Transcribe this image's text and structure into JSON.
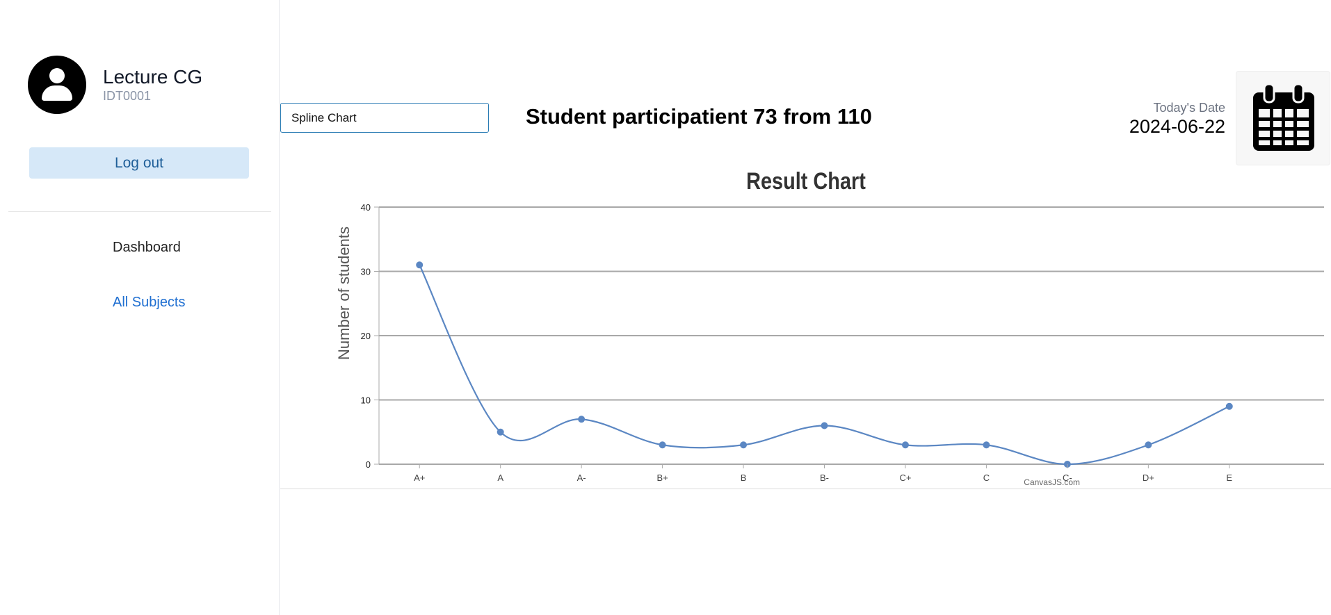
{
  "sidebar": {
    "user_name": "Lecture CG",
    "user_id": "IDT0001",
    "logout_label": "Log out",
    "nav": [
      {
        "label": "Dashboard"
      },
      {
        "label": "All Subjects"
      }
    ]
  },
  "header": {
    "chart_type_value": "Spline Chart",
    "participation_text": "Student participatient 73 from 110",
    "date_label": "Today's Date",
    "date_value": "2024-06-22"
  },
  "icons": {
    "avatar": "user-avatar-icon",
    "calendar": "calendar-icon"
  },
  "chart_data": {
    "type": "line",
    "title": "Result Chart",
    "ylabel": "Number of students",
    "xlabel": "",
    "categories": [
      "A+",
      "A",
      "A-",
      "B+",
      "B",
      "B-",
      "C+",
      "C",
      "C-",
      "D+",
      "E"
    ],
    "values": [
      31,
      5,
      7,
      3,
      3,
      6,
      3,
      3,
      0,
      3,
      9
    ],
    "ylim": [
      0,
      40
    ],
    "yticks": [
      0,
      10,
      20,
      30,
      40
    ],
    "grid": true,
    "line_color": "#5b87c3",
    "credit": "CanvasJS.com"
  }
}
